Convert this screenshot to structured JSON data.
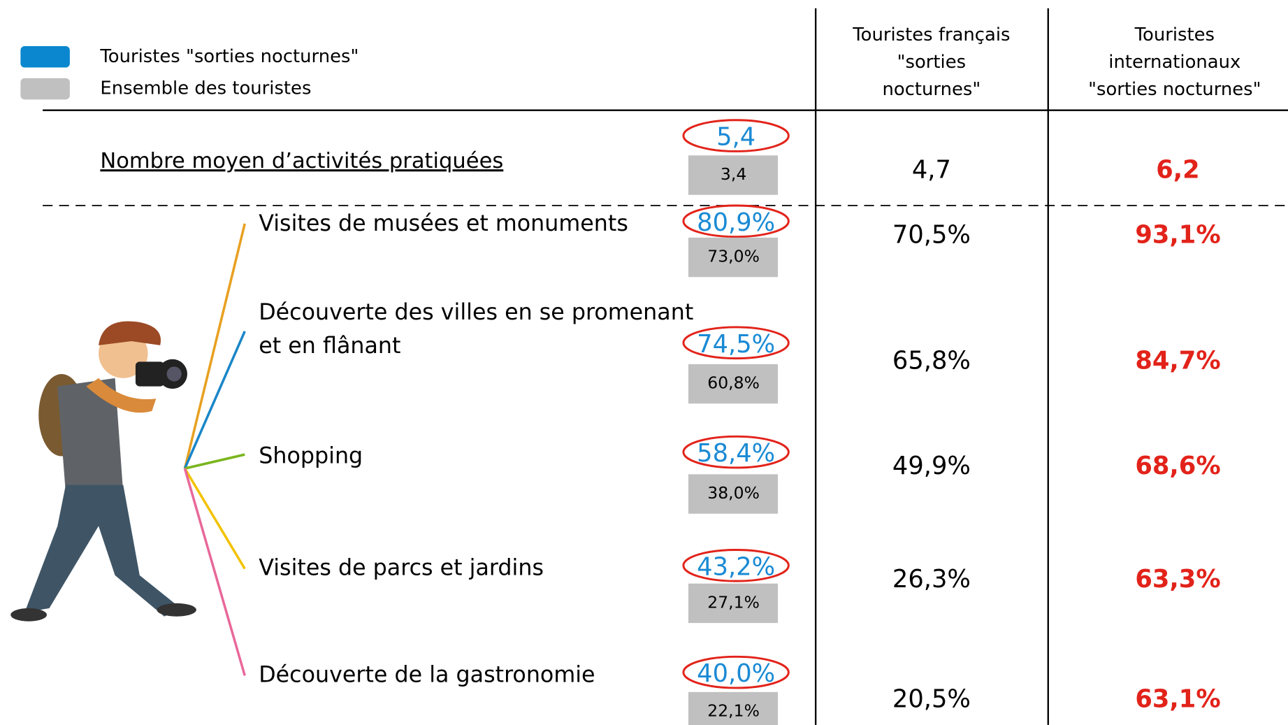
{
  "legend": [
    {
      "label": "Touristes \"sorties nocturnes\"",
      "color": "#0a87cf"
    },
    {
      "label": "Ensemble des touristes",
      "color": "#c0c0c0"
    }
  ],
  "columns": [
    [
      "Touristes français",
      "\"sorties",
      "nocturnes\""
    ],
    [
      "Touristes",
      "internationaux",
      "\"sorties nocturnes\""
    ]
  ],
  "summary": {
    "label": "Nombre moyen d’activités pratiquées",
    "night": "5,4",
    "all": "3,4",
    "french": "4,7",
    "intl": "6,2"
  },
  "rows": [
    {
      "label": [
        "Visites de musées et monuments"
      ],
      "night": "80,9%",
      "all": "73,0%",
      "french": "70,5%",
      "intl": "93,1%",
      "line_color": "#e8a020"
    },
    {
      "label": [
        "Découverte des villes en se promenant",
        "et en flânant"
      ],
      "night": "74,5%",
      "all": "60,8%",
      "french": "65,8%",
      "intl": "84,7%",
      "line_color": "#1a86c8"
    },
    {
      "label": [
        "Shopping"
      ],
      "night": "58,4%",
      "all": "38,0%",
      "french": "49,9%",
      "intl": "68,6%",
      "line_color": "#7ab51d"
    },
    {
      "label": [
        "Visites de parcs et jardins"
      ],
      "night": "43,2%",
      "all": "27,1%",
      "french": "26,3%",
      "intl": "63,3%",
      "line_color": "#f2c200"
    },
    {
      "label": [
        "Découverte de la gastronomie"
      ],
      "night": "40,0%",
      "all": "22,1%",
      "french": "20,5%",
      "intl": "63,1%",
      "line_color": "#e8689a"
    }
  ]
}
